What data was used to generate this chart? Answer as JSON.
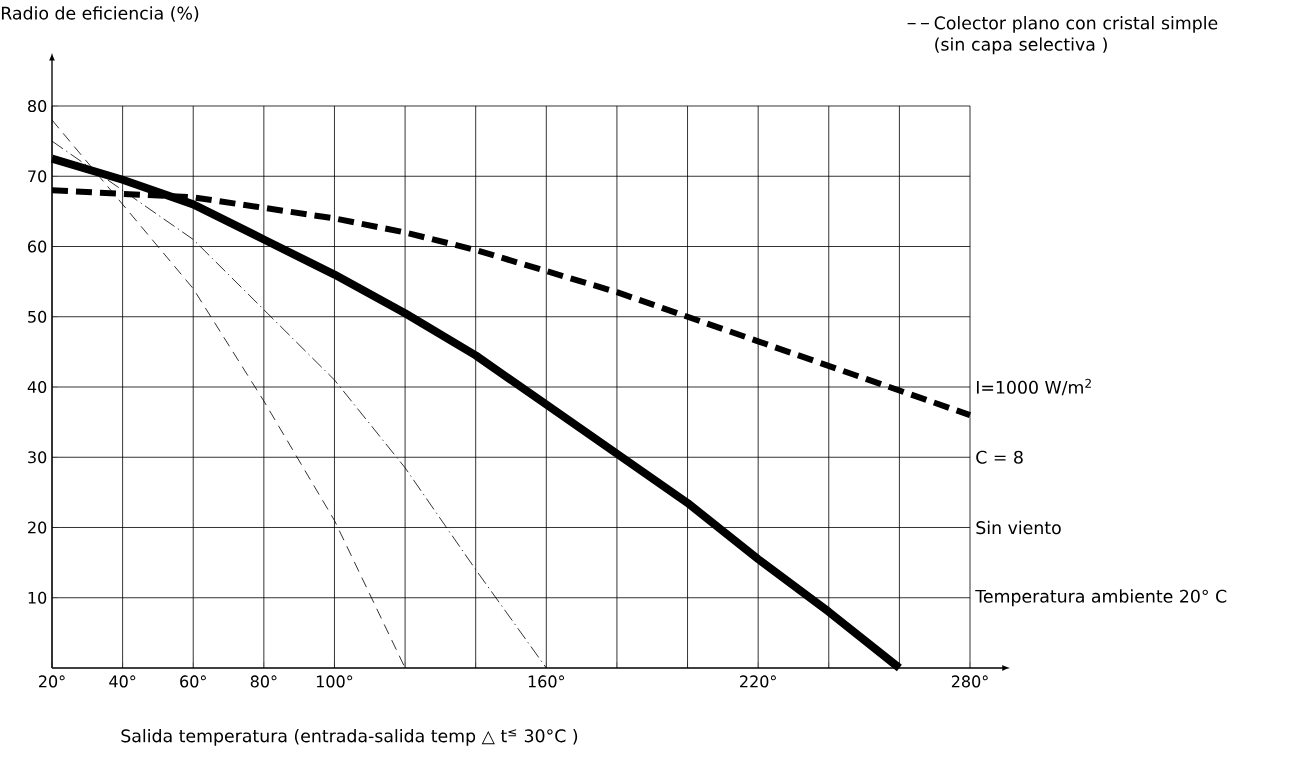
{
  "chart_data": {
    "type": "line",
    "xlabel": "Salida temperatura (entrada-salida temp △ t$^{≤}$ 30°C )",
    "ylabel": "Radio de eficiencia (%)",
    "xlim": [
      20,
      280
    ],
    "ylim": [
      0,
      80
    ],
    "xticks": [
      {
        "value": 20,
        "label": "20°"
      },
      {
        "value": 40,
        "label": "40°"
      },
      {
        "value": 60,
        "label": "60°"
      },
      {
        "value": 80,
        "label": "80°"
      },
      {
        "value": 100,
        "label": "100°"
      },
      {
        "value": 120,
        "label": null
      },
      {
        "value": 140,
        "label": null
      },
      {
        "value": 160,
        "label": "160°"
      },
      {
        "value": 180,
        "label": null
      },
      {
        "value": 200,
        "label": null
      },
      {
        "value": 220,
        "label": "220°"
      },
      {
        "value": 240,
        "label": null
      },
      {
        "value": 260,
        "label": null
      },
      {
        "value": 280,
        "label": "280°"
      }
    ],
    "yticks": [
      10,
      20,
      30,
      40,
      50,
      60,
      70,
      80
    ],
    "grid": true,
    "legend": "top right",
    "marker": "none",
    "x": [
      20,
      40,
      60,
      80,
      100,
      120,
      140,
      160,
      180,
      200,
      220,
      240,
      260,
      280
    ],
    "series": [
      {
        "color": "#000000",
        "line_style": "solid",
        "values": [
          72.5,
          69.5,
          66,
          61,
          56,
          50.5,
          44.5,
          37.5,
          30.5,
          23.5,
          15.5,
          8,
          0,
          null
        ]
      },
      {
        "name": "Colector plano con cristal simple (sin capa selectiva )",
        "color": "#000000",
        "line_style": "dashed",
        "values": [
          68,
          67.5,
          67,
          65.5,
          64,
          62,
          59.5,
          56.5,
          53.5,
          50,
          46.5,
          43,
          39.5,
          36
        ]
      },
      {
        "color": "#000000",
        "line_style": "dashed",
        "x": [
          20,
          60,
          80,
          100,
          120
        ],
        "values": [
          78,
          54,
          38,
          21,
          0
        ]
      },
      {
        "color": "#000000",
        "line_style": "dashdotted",
        "x": [
          20,
          60,
          80,
          100,
          120,
          140,
          160
        ],
        "values": [
          75,
          61,
          51,
          41,
          28.5,
          14,
          0
        ]
      }
    ],
    "annotations": [
      "I=1000    W/m$^{2}$",
      "C = 8",
      "Sin viento",
      "Temperatura ambiente 20° C"
    ]
  }
}
